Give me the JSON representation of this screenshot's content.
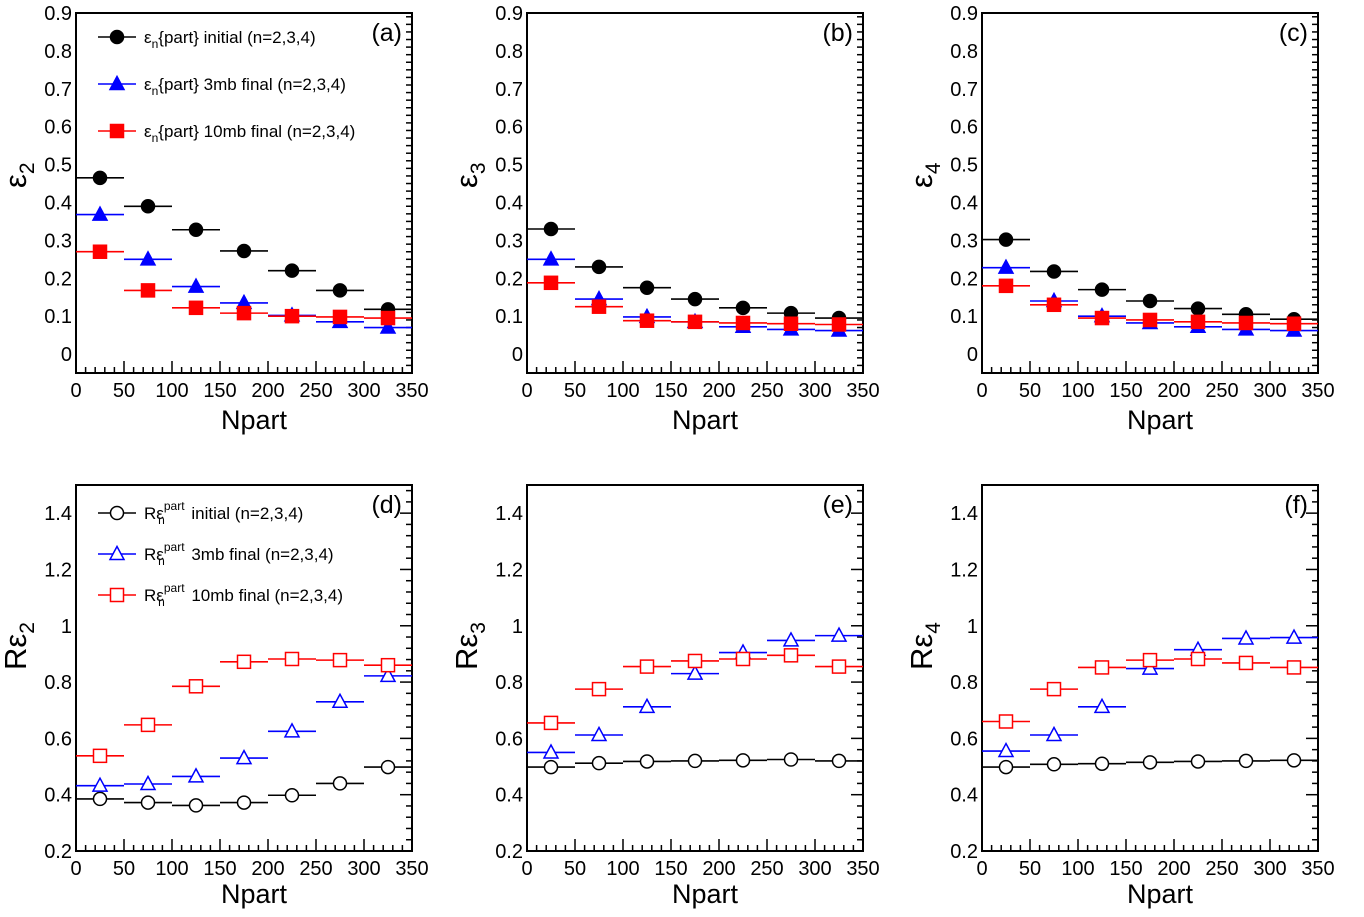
{
  "colors": {
    "initial": "#000000",
    "mb3": "#0000ff",
    "mb10": "#ff0000"
  },
  "chart_data": [
    {
      "panel": "(a)",
      "type": "scatter",
      "xlabel": "Npart",
      "ylabel_main": "ε",
      "ylabel_sub": "2",
      "xlim": [
        0,
        350
      ],
      "ylim": [
        -0.05,
        0.9
      ],
      "xticks": [
        0,
        50,
        100,
        150,
        200,
        250,
        300,
        350
      ],
      "yticks": [
        0,
        0.1,
        0.2,
        0.3,
        0.4,
        0.5,
        0.6,
        0.7,
        0.8,
        0.9
      ],
      "ytick_labels": [
        "0",
        "0.1",
        "0.2",
        "0.3",
        "0.4",
        "0.5",
        "0.6",
        "0.7",
        "0.8",
        "0.9"
      ],
      "x": [
        25,
        75,
        125,
        175,
        225,
        275,
        325
      ],
      "x_error": 25,
      "legend": [
        {
          "pre": "ε",
          "sub": "n",
          "post": "{part} initial (n=2,3,4)"
        },
        {
          "pre": "ε",
          "sub": "n",
          "post": "{part} 3mb final (n=2,3,4)"
        },
        {
          "pre": "ε",
          "sub": "n",
          "post": "{part} 10mb final (n=2,3,4)"
        }
      ],
      "series": [
        {
          "marker": "circle",
          "filled": true,
          "color": "initial",
          "values": [
            0.465,
            0.39,
            0.328,
            0.272,
            0.22,
            0.168,
            0.118
          ]
        },
        {
          "marker": "triangle",
          "filled": true,
          "color": "mb3",
          "values": [
            0.368,
            0.25,
            0.178,
            0.135,
            0.102,
            0.085,
            0.07
          ]
        },
        {
          "marker": "square",
          "filled": true,
          "color": "mb10",
          "values": [
            0.27,
            0.168,
            0.122,
            0.108,
            0.1,
            0.098,
            0.095
          ]
        }
      ]
    },
    {
      "panel": "(b)",
      "type": "scatter",
      "xlabel": "Npart",
      "ylabel_main": "ε",
      "ylabel_sub": "3",
      "xlim": [
        0,
        350
      ],
      "ylim": [
        -0.05,
        0.9
      ],
      "xticks": [
        0,
        50,
        100,
        150,
        200,
        250,
        300,
        350
      ],
      "yticks": [
        0,
        0.1,
        0.2,
        0.3,
        0.4,
        0.5,
        0.6,
        0.7,
        0.8,
        0.9
      ],
      "ytick_labels": [
        "0",
        "0.1",
        "0.2",
        "0.3",
        "0.4",
        "0.5",
        "0.6",
        "0.7",
        "0.8",
        "0.9"
      ],
      "x": [
        25,
        75,
        125,
        175,
        225,
        275,
        325
      ],
      "x_error": 25,
      "series": [
        {
          "marker": "circle",
          "filled": true,
          "color": "initial",
          "values": [
            0.33,
            0.23,
            0.175,
            0.145,
            0.122,
            0.108,
            0.095
          ]
        },
        {
          "marker": "triangle",
          "filled": true,
          "color": "mb3",
          "values": [
            0.25,
            0.145,
            0.098,
            0.085,
            0.072,
            0.065,
            0.062
          ]
        },
        {
          "marker": "square",
          "filled": true,
          "color": "mb10",
          "values": [
            0.188,
            0.125,
            0.088,
            0.085,
            0.082,
            0.08,
            0.078
          ]
        }
      ]
    },
    {
      "panel": "(c)",
      "type": "scatter",
      "xlabel": "Npart",
      "ylabel_main": "ε",
      "ylabel_sub": "4",
      "xlim": [
        0,
        350
      ],
      "ylim": [
        -0.05,
        0.9
      ],
      "xticks": [
        0,
        50,
        100,
        150,
        200,
        250,
        300,
        350
      ],
      "yticks": [
        0,
        0.1,
        0.2,
        0.3,
        0.4,
        0.5,
        0.6,
        0.7,
        0.8,
        0.9
      ],
      "ytick_labels": [
        "0",
        "0.1",
        "0.2",
        "0.3",
        "0.4",
        "0.5",
        "0.6",
        "0.7",
        "0.8",
        "0.9"
      ],
      "x": [
        25,
        75,
        125,
        175,
        225,
        275,
        325
      ],
      "x_error": 25,
      "series": [
        {
          "marker": "circle",
          "filled": true,
          "color": "initial",
          "values": [
            0.302,
            0.218,
            0.17,
            0.14,
            0.12,
            0.105,
            0.092
          ]
        },
        {
          "marker": "triangle",
          "filled": true,
          "color": "mb3",
          "values": [
            0.228,
            0.14,
            0.1,
            0.082,
            0.072,
            0.065,
            0.062
          ]
        },
        {
          "marker": "square",
          "filled": true,
          "color": "mb10",
          "values": [
            0.18,
            0.13,
            0.095,
            0.09,
            0.085,
            0.082,
            0.08
          ]
        }
      ]
    },
    {
      "panel": "(d)",
      "type": "scatter",
      "xlabel": "Npart",
      "ylabel_main": "Rε",
      "ylabel_sub": "2",
      "xlim": [
        0,
        350
      ],
      "ylim": [
        0.2,
        1.5
      ],
      "xticks": [
        0,
        50,
        100,
        150,
        200,
        250,
        300,
        350
      ],
      "yticks": [
        0.2,
        0.4,
        0.6,
        0.8,
        1.0,
        1.2,
        1.4
      ],
      "ytick_labels": [
        "0.2",
        "0.4",
        "0.6",
        "0.8",
        "1",
        "1.2",
        "1.4"
      ],
      "x": [
        25,
        75,
        125,
        175,
        225,
        275,
        325
      ],
      "x_error": 25,
      "legend": [
        {
          "pre": "Rε",
          "sub": "n",
          "sup": "part",
          "post": " initial (n=2,3,4)"
        },
        {
          "pre": "Rε",
          "sub": "n",
          "sup": "part",
          "post": " 3mb final (n=2,3,4)"
        },
        {
          "pre": "Rε",
          "sub": "n",
          "sup": "part",
          "post": " 10mb final (n=2,3,4)"
        }
      ],
      "series": [
        {
          "marker": "circle",
          "filled": false,
          "color": "initial",
          "values": [
            0.385,
            0.372,
            0.362,
            0.372,
            0.398,
            0.44,
            0.498
          ]
        },
        {
          "marker": "triangle",
          "filled": false,
          "color": "mb3",
          "values": [
            0.432,
            0.438,
            0.465,
            0.53,
            0.625,
            0.73,
            0.822
          ]
        },
        {
          "marker": "square",
          "filled": false,
          "color": "mb10",
          "values": [
            0.538,
            0.648,
            0.785,
            0.872,
            0.882,
            0.878,
            0.86
          ]
        }
      ]
    },
    {
      "panel": "(e)",
      "type": "scatter",
      "xlabel": "Npart",
      "ylabel_main": "Rε",
      "ylabel_sub": "3",
      "xlim": [
        0,
        350
      ],
      "ylim": [
        0.2,
        1.5
      ],
      "xticks": [
        0,
        50,
        100,
        150,
        200,
        250,
        300,
        350
      ],
      "yticks": [
        0.2,
        0.4,
        0.6,
        0.8,
        1.0,
        1.2,
        1.4
      ],
      "ytick_labels": [
        "0.2",
        "0.4",
        "0.6",
        "0.8",
        "1",
        "1.2",
        "1.4"
      ],
      "x": [
        25,
        75,
        125,
        175,
        225,
        275,
        325
      ],
      "x_error": 25,
      "series": [
        {
          "marker": "circle",
          "filled": false,
          "color": "initial",
          "values": [
            0.498,
            0.512,
            0.518,
            0.52,
            0.522,
            0.525,
            0.52
          ]
        },
        {
          "marker": "triangle",
          "filled": false,
          "color": "mb3",
          "values": [
            0.55,
            0.612,
            0.712,
            0.83,
            0.905,
            0.948,
            0.965
          ]
        },
        {
          "marker": "square",
          "filled": false,
          "color": "mb10",
          "values": [
            0.655,
            0.775,
            0.855,
            0.875,
            0.882,
            0.895,
            0.855
          ]
        }
      ]
    },
    {
      "panel": "(f)",
      "type": "scatter",
      "xlabel": "Npart",
      "ylabel_main": "Rε",
      "ylabel_sub": "4",
      "xlim": [
        0,
        350
      ],
      "ylim": [
        0.2,
        1.5
      ],
      "xticks": [
        0,
        50,
        100,
        150,
        200,
        250,
        300,
        350
      ],
      "yticks": [
        0.2,
        0.4,
        0.6,
        0.8,
        1.0,
        1.2,
        1.4
      ],
      "ytick_labels": [
        "0.2",
        "0.4",
        "0.6",
        "0.8",
        "1",
        "1.2",
        "1.4"
      ],
      "x": [
        25,
        75,
        125,
        175,
        225,
        275,
        325
      ],
      "x_error": 25,
      "series": [
        {
          "marker": "circle",
          "filled": false,
          "color": "initial",
          "values": [
            0.498,
            0.508,
            0.51,
            0.515,
            0.518,
            0.52,
            0.522
          ]
        },
        {
          "marker": "triangle",
          "filled": false,
          "color": "mb3",
          "values": [
            0.555,
            0.612,
            0.712,
            0.848,
            0.915,
            0.955,
            0.958
          ]
        },
        {
          "marker": "square",
          "filled": false,
          "color": "mb10",
          "values": [
            0.66,
            0.775,
            0.852,
            0.878,
            0.882,
            0.868,
            0.852
          ]
        }
      ]
    }
  ]
}
